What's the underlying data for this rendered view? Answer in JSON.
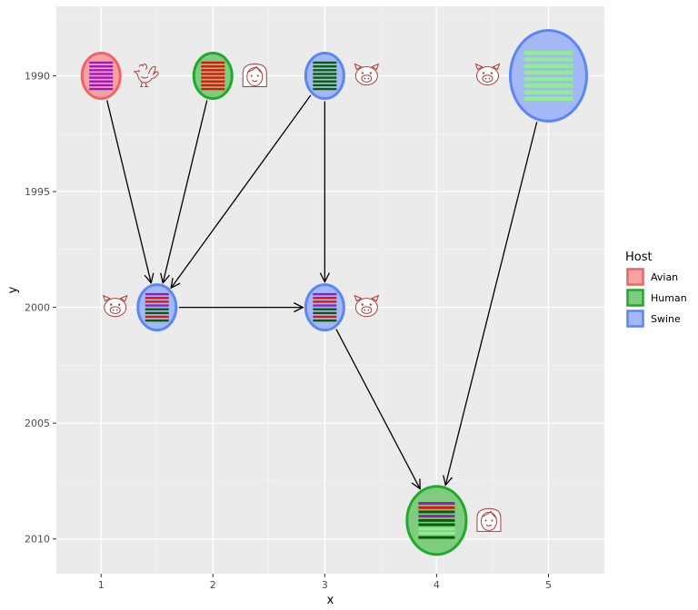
{
  "chart_data": {
    "type": "scatter",
    "xlabel": "x",
    "ylabel": "y",
    "xlim": [
      0.6,
      5.5
    ],
    "ylim": [
      2011.5,
      1987
    ],
    "y_reversed": true,
    "x_ticks": [
      1,
      2,
      3,
      4,
      5
    ],
    "x_tick_labels": [
      "1",
      "2",
      "3",
      "4",
      "5"
    ],
    "y_ticks": [
      1990,
      1995,
      2000,
      2005,
      2010
    ],
    "y_tick_labels": [
      "1990",
      "1995",
      "2000",
      "2005",
      "2010"
    ],
    "grid": true,
    "legend": {
      "title": "Host",
      "position": "right",
      "entries": [
        {
          "label": "Avian",
          "fill": "#f4a3a3",
          "stroke": "#f06464"
        },
        {
          "label": "Human",
          "fill": "#7fcc7f",
          "stroke": "#1faa2a"
        },
        {
          "label": "Swine",
          "fill": "#a3b8f4",
          "stroke": "#5b86f3"
        }
      ]
    },
    "nodes": [
      {
        "id": "n1",
        "x": 1.0,
        "y": 1990,
        "host": "Avian",
        "size": 1.0,
        "icon": "rooster-icon",
        "icon_side": "right",
        "segments": [
          "#9b19c4",
          "#9b19c4",
          "#9b19c4",
          "#9b19c4",
          "#9b19c4",
          "#9b19c4",
          "#9b19c4",
          "#9b19c4"
        ]
      },
      {
        "id": "n2",
        "x": 2.0,
        "y": 1990,
        "host": "Human",
        "size": 1.0,
        "icon": "woman-face-icon",
        "icon_side": "right",
        "segments": [
          "#e3120b",
          "#e3120b",
          "#e3120b",
          "#e3120b",
          "#e3120b",
          "#e3120b",
          "#e3120b",
          "#e3120b"
        ]
      },
      {
        "id": "n3",
        "x": 3.0,
        "y": 1990,
        "host": "Swine",
        "size": 1.0,
        "icon": "pig-face-icon",
        "icon_side": "right",
        "segments": [
          "#0a5c0a",
          "#0a5c0a",
          "#0a5c0a",
          "#0a5c0a",
          "#0a5c0a",
          "#0a5c0a",
          "#0a5c0a",
          "#0a5c0a"
        ]
      },
      {
        "id": "n4",
        "x": 5.0,
        "y": 1990,
        "host": "Swine",
        "size": 2.0,
        "icon": "pig-face-icon",
        "icon_side": "left",
        "segments": [
          "#90ee90",
          "#90ee90",
          "#90ee90",
          "#90ee90",
          "#90ee90",
          "#90ee90",
          "#90ee90",
          "#90ee90"
        ]
      },
      {
        "id": "n5",
        "x": 1.5,
        "y": 2000,
        "host": "Swine",
        "size": 1.0,
        "icon": "pig-face-icon",
        "icon_side": "left",
        "segments": [
          "#9b19c4",
          "#e3120b",
          "#e3120b",
          "#9b19c4",
          "#0a5c0a",
          "#0a5c0a",
          "#e3120b",
          "#0a5c0a"
        ]
      },
      {
        "id": "n6",
        "x": 3.0,
        "y": 2000,
        "host": "Swine",
        "size": 1.0,
        "icon": "pig-face-icon",
        "icon_side": "right",
        "segments": [
          "#9b19c4",
          "#e3120b",
          "#e3120b",
          "#9b19c4",
          "#0a5c0a",
          "#0a5c0a",
          "#e3120b",
          "#0a5c0a"
        ]
      },
      {
        "id": "n7",
        "x": 4.0,
        "y": 2009.2,
        "host": "Human",
        "size": 1.5,
        "icon": "woman-face-icon",
        "icon_side": "right",
        "segments": [
          "#9b19c4",
          "#e3120b",
          "#0a5c0a",
          "#9b19c4",
          "#0a5c0a",
          "#0a5c0a",
          "#90ee90",
          "#90ee90",
          "#0a5c0a"
        ]
      }
    ],
    "edges": [
      {
        "from": "n1",
        "to": "n5"
      },
      {
        "from": "n2",
        "to": "n5"
      },
      {
        "from": "n3",
        "to": "n5"
      },
      {
        "from": "n3",
        "to": "n6"
      },
      {
        "from": "n5",
        "to": "n6"
      },
      {
        "from": "n6",
        "to": "n7"
      },
      {
        "from": "n4",
        "to": "n7"
      }
    ]
  }
}
